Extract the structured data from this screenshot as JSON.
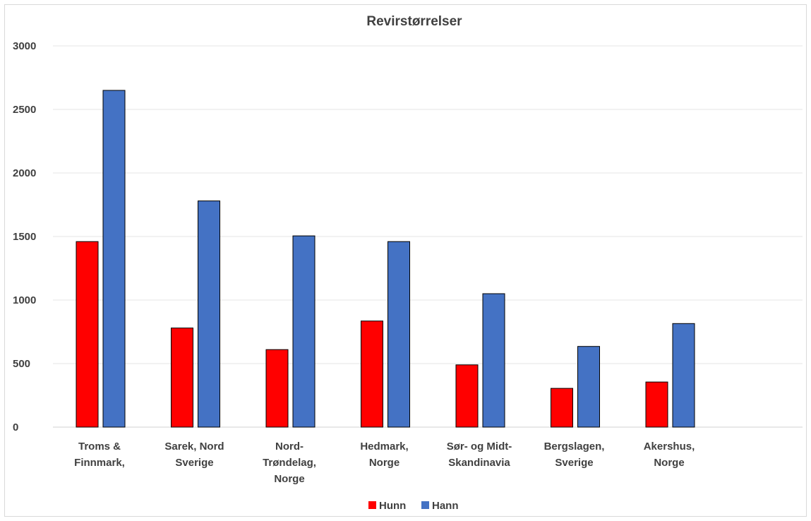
{
  "chart_data": {
    "type": "bar",
    "title": "Revirstørrelser",
    "xlabel": "",
    "ylabel": "",
    "ylim": [
      0,
      3000
    ],
    "yticks": [
      0,
      500,
      1000,
      1500,
      2000,
      2500,
      3000
    ],
    "grid": true,
    "legend": "bottom",
    "categories": [
      [
        "Troms &",
        "Finnmark,"
      ],
      [
        "Sarek, Nord",
        "Sverige"
      ],
      [
        "Nord-",
        "Trøndelag,",
        "Norge"
      ],
      [
        "Hedmark,",
        "Norge"
      ],
      [
        "Sør- og Midt-",
        "Skandinavia"
      ],
      [
        "Bergslagen,",
        "Sverige"
      ],
      [
        "Akershus,",
        "Norge"
      ]
    ],
    "series": [
      {
        "name": "Hunn",
        "color": "#ff0000",
        "values": [
          1460,
          780,
          610,
          835,
          490,
          305,
          355
        ]
      },
      {
        "name": "Hann",
        "color": "#4472c4",
        "values": [
          2650,
          1780,
          1505,
          1460,
          1050,
          635,
          815
        ]
      }
    ]
  }
}
